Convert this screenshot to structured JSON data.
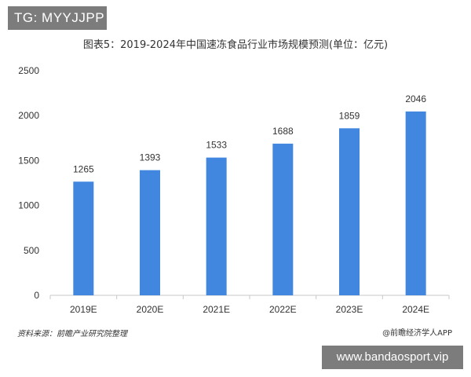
{
  "badges": {
    "top_left": "TG: MYYJJPP",
    "bottom_right": "www.bandaosport.vip"
  },
  "footer": {
    "source": "资料来源：前瞻产业研究院整理",
    "credit": "@前瞻经济学人APP"
  },
  "chart_data": {
    "type": "bar",
    "title": "图表5：2019-2024年中国速冻食品行业市场规模预测(单位：亿元)",
    "xlabel": "",
    "ylabel": "",
    "categories": [
      "2019E",
      "2020E",
      "2021E",
      "2022E",
      "2023E",
      "2024E"
    ],
    "values": [
      1265,
      1393,
      1533,
      1688,
      1859,
      2046
    ],
    "ylim": [
      0,
      2500
    ],
    "yticks": [
      0,
      500,
      1000,
      1500,
      2000,
      2500
    ],
    "grid": false,
    "bar_color": "#4187e0",
    "data_labels": true
  }
}
